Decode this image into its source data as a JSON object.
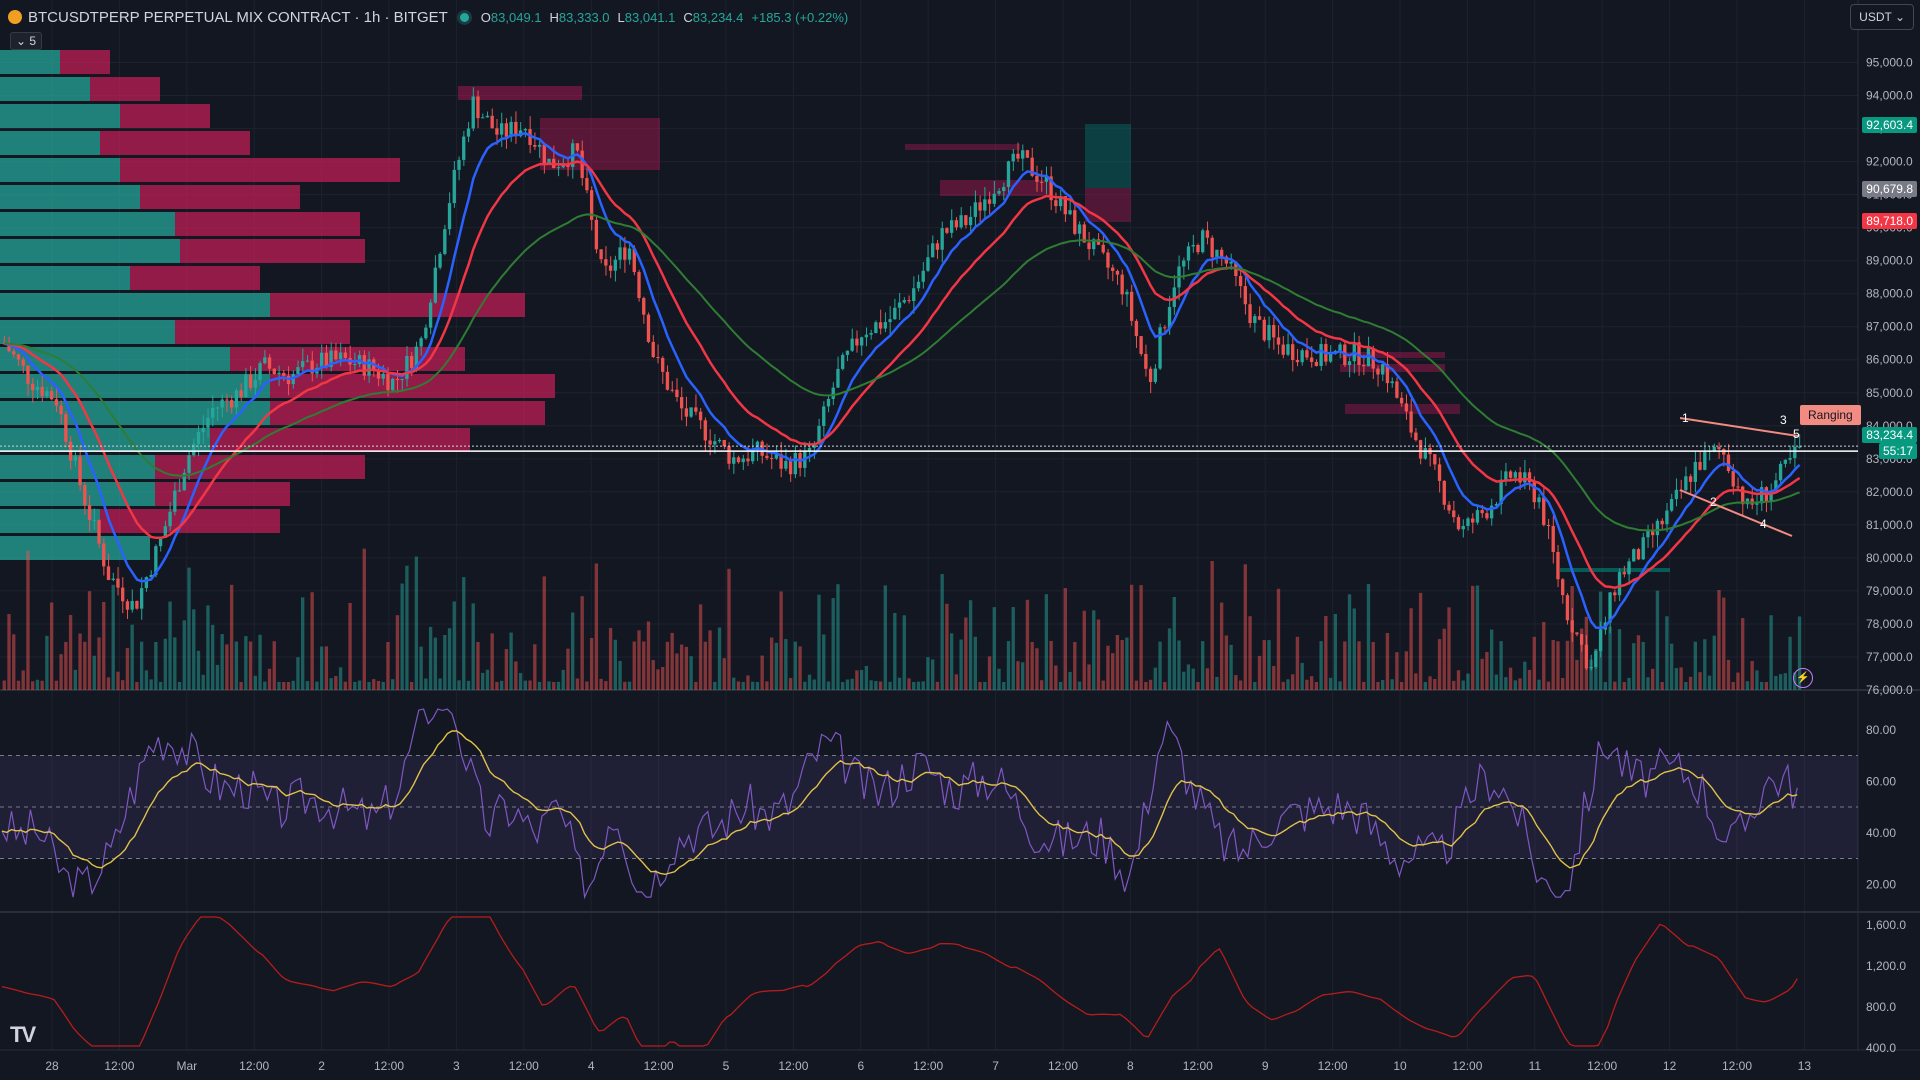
{
  "header": {
    "title": "BTCUSDTPERP PERPETUAL MIX CONTRACT · 1h · BITGET",
    "ohlc": [
      {
        "k": "O",
        "v": "83,049.1"
      },
      {
        "k": "H",
        "v": "83,333.0"
      },
      {
        "k": "L",
        "v": "83,041.1"
      },
      {
        "k": "C",
        "v": "83,234.4"
      }
    ],
    "change": "+185.3 (+0.22%)",
    "collapse_label": "⌄ 5",
    "currency": "USDT ⌄"
  },
  "price_axis": {
    "ticks": [
      "95,000.0",
      "94,000.0",
      "93,000.0",
      "92,000.0",
      "91,000.0",
      "90,000.0",
      "89,000.0",
      "88,000.0",
      "87,000.0",
      "86,000.0",
      "85,000.0",
      "84,000.0",
      "83,000.0",
      "82,000.0",
      "81,000.0",
      "80,000.0",
      "79,000.0",
      "78,000.0",
      "77,000.0",
      "76,000.0"
    ],
    "labels": [
      {
        "text": "92,603.4",
        "color": "#089981"
      },
      {
        "text": "90,679.8",
        "color": "#787b86"
      },
      {
        "text": "89,718.0",
        "color": "#f23645"
      },
      {
        "text": "83,234.4",
        "color": "#089981"
      },
      {
        "text": "55:17",
        "color": "#089981"
      }
    ]
  },
  "rsi_axis": {
    "ticks": [
      "80.00",
      "60.00",
      "40.00",
      "20.00"
    ]
  },
  "osc_axis": {
    "ticks": [
      "1,600.0",
      "1,200.0",
      "800.0",
      "400.0"
    ]
  },
  "time_axis": {
    "labels": [
      "28",
      "12:00",
      "Mar",
      "12:00",
      "2",
      "12:00",
      "3",
      "12:00",
      "4",
      "12:00",
      "5",
      "12:00",
      "6",
      "12:00",
      "7",
      "12:00",
      "8",
      "12:00",
      "9",
      "12:00",
      "10",
      "12:00",
      "11",
      "12:00",
      "12",
      "12:00",
      "13"
    ]
  },
  "annotation": {
    "ranging": "Ranging",
    "waves": [
      "1",
      "2",
      "3",
      "4",
      "5"
    ]
  },
  "colors": {
    "bg": "#131722",
    "up": "#26a69a",
    "down": "#ef5350",
    "ema_fast": "#2962ff",
    "ema_mid": "#f23645",
    "ema_slow": "#2e7d32",
    "rsi": "#7e57c2",
    "rsi_ma": "#e0c14a",
    "osc": "#b71c1c"
  },
  "chart_data": {
    "type": "line",
    "title": "BTCUSDTPERP PERPETUAL MIX CONTRACT · 1h · BITGET",
    "close_path": [
      86500,
      85400,
      84800,
      82000,
      79500,
      78500,
      80500,
      83000,
      84500,
      85000,
      85800,
      85500,
      85900,
      86000,
      85800,
      85300,
      86500,
      90500,
      93800,
      92800,
      93100,
      91900,
      92300,
      88500,
      89500,
      86000,
      84500,
      83800,
      83000,
      83200,
      82800,
      83100,
      85500,
      86900,
      87200,
      88200,
      89800,
      90200,
      91200,
      92100,
      91400,
      90200,
      89200,
      88200,
      85300,
      88500,
      89700,
      88900,
      87200,
      86400,
      86200,
      86100,
      86200,
      85800,
      84000,
      82500,
      80800,
      81500,
      82600,
      81800,
      78500,
      76600,
      79400,
      80300,
      81400,
      82800,
      83300,
      81500,
      82200,
      83300
    ],
    "price_range": [
      76000,
      95500
    ]
  }
}
